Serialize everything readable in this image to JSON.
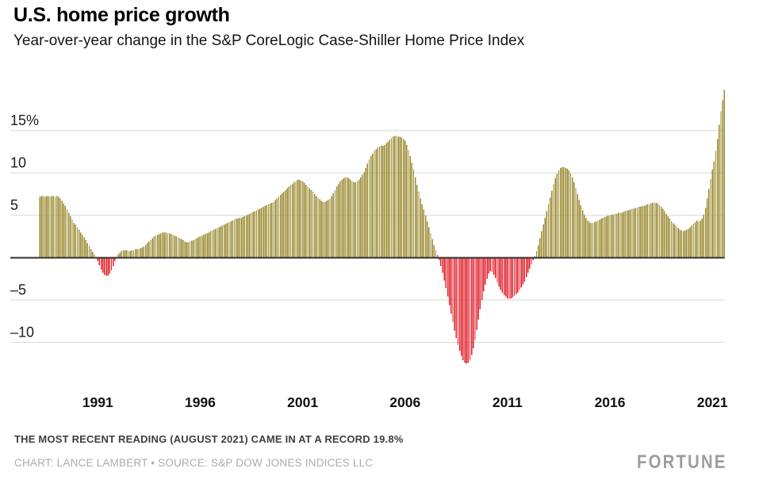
{
  "header": {
    "title": "U.S. home price growth",
    "subtitle": "Year-over-year change in the S&P CoreLogic Case-Shiller Home Price Index"
  },
  "chart_data": {
    "type": "bar",
    "title": "U.S. home price growth",
    "subtitle": "Year-over-year change in the S&P CoreLogic Case-Shiller Home Price Index",
    "unit": "percent, year-over-year change",
    "frequency": "monthly",
    "start_month": "1988-03",
    "end_month": "2021-08",
    "xlabel": "",
    "ylabel": "",
    "x_tick_labels": [
      "1991",
      "1996",
      "2001",
      "2006",
      "2011",
      "2016",
      "2021"
    ],
    "x_tick_years": [
      1991,
      1996,
      2001,
      2006,
      2011,
      2016,
      2021
    ],
    "y_tick_labels": [
      "15%",
      "10",
      "5",
      "–5",
      "–10"
    ],
    "y_tick_values": [
      15,
      10,
      5,
      -5,
      -10
    ],
    "ylim": [
      -13.8,
      20.3
    ],
    "grid": true,
    "legend": false,
    "zero_baseline": true,
    "positive_color": "#9B8B32",
    "negative_color": "#E01F2A",
    "grid_color": "#D8D8D8",
    "zero_line_color": "#33302B",
    "values": [
      7.2,
      7.3,
      7.3,
      7.2,
      7.3,
      7.3,
      7.2,
      7.3,
      7.3,
      7.2,
      7.3,
      7.2,
      7.0,
      6.7,
      6.4,
      6.1,
      5.7,
      5.3,
      4.9,
      4.5,
      4.1,
      3.9,
      3.6,
      3.3,
      3.0,
      2.7,
      2.4,
      2.1,
      1.7,
      1.4,
      1.0,
      0.7,
      0.4,
      0.1,
      -0.4,
      -0.9,
      -1.4,
      -1.8,
      -2.0,
      -2.1,
      -2.1,
      -1.9,
      -1.5,
      -1.0,
      -0.4,
      0.1,
      0.4,
      0.6,
      0.8,
      0.9,
      0.9,
      0.9,
      0.8,
      0.8,
      0.9,
      0.9,
      1.0,
      1.0,
      1.0,
      1.1,
      1.2,
      1.3,
      1.5,
      1.7,
      1.9,
      2.1,
      2.3,
      2.5,
      2.6,
      2.7,
      2.8,
      2.9,
      3.0,
      3.0,
      3.0,
      2.9,
      2.9,
      2.8,
      2.7,
      2.6,
      2.5,
      2.4,
      2.3,
      2.2,
      2.1,
      1.9,
      1.8,
      1.8,
      1.9,
      2.0,
      2.1,
      2.2,
      2.3,
      2.4,
      2.5,
      2.6,
      2.7,
      2.8,
      2.9,
      3.0,
      3.1,
      3.2,
      3.3,
      3.4,
      3.5,
      3.6,
      3.7,
      3.8,
      3.9,
      4.0,
      4.1,
      4.2,
      4.3,
      4.4,
      4.5,
      4.6,
      4.6,
      4.7,
      4.7,
      4.8,
      4.9,
      5.0,
      5.1,
      5.2,
      5.3,
      5.4,
      5.5,
      5.6,
      5.7,
      5.8,
      5.9,
      6.0,
      6.1,
      6.2,
      6.3,
      6.4,
      6.5,
      6.6,
      6.8,
      7.0,
      7.2,
      7.4,
      7.6,
      7.8,
      8.0,
      8.2,
      8.4,
      8.6,
      8.7,
      8.9,
      9.0,
      9.2,
      9.2,
      9.1,
      9.0,
      8.8,
      8.6,
      8.4,
      8.2,
      8.0,
      7.8,
      7.5,
      7.3,
      7.1,
      6.9,
      6.7,
      6.6,
      6.6,
      6.7,
      6.8,
      7.0,
      7.3,
      7.6,
      8.0,
      8.4,
      8.7,
      9.0,
      9.2,
      9.4,
      9.5,
      9.5,
      9.4,
      9.2,
      9.0,
      8.9,
      8.9,
      9.0,
      9.2,
      9.5,
      9.8,
      10.1,
      10.6,
      11.1,
      11.6,
      12.0,
      12.3,
      12.6,
      12.8,
      13.0,
      13.1,
      13.2,
      13.2,
      13.3,
      13.5,
      13.7,
      13.9,
      14.1,
      14.3,
      14.4,
      14.4,
      14.3,
      14.3,
      14.2,
      14.0,
      13.8,
      13.3,
      12.7,
      12.0,
      11.2,
      10.4,
      9.5,
      8.6,
      7.8,
      7.0,
      6.3,
      5.7,
      5.0,
      4.3,
      3.6,
      2.9,
      2.2,
      1.5,
      0.9,
      0.3,
      -0.3,
      -1.0,
      -1.8,
      -2.7,
      -3.6,
      -4.6,
      -5.6,
      -6.6,
      -7.6,
      -8.6,
      -9.5,
      -10.3,
      -11.0,
      -11.6,
      -12.1,
      -12.4,
      -12.5,
      -12.4,
      -12.1,
      -11.5,
      -10.7,
      -9.7,
      -8.5,
      -7.3,
      -6.1,
      -5.0,
      -4.0,
      -3.2,
      -2.5,
      -1.9,
      -1.6,
      -1.7,
      -2.0,
      -2.4,
      -2.9,
      -3.4,
      -3.8,
      -4.1,
      -4.4,
      -4.6,
      -4.8,
      -4.8,
      -4.8,
      -4.7,
      -4.5,
      -4.3,
      -4.1,
      -3.8,
      -3.5,
      -3.2,
      -2.8,
      -2.3,
      -1.8,
      -1.3,
      -0.8,
      -0.3,
      0.2,
      0.8,
      1.5,
      2.3,
      3.1,
      3.9,
      4.7,
      5.5,
      6.3,
      7.1,
      7.9,
      8.7,
      9.4,
      9.9,
      10.3,
      10.6,
      10.7,
      10.7,
      10.6,
      10.5,
      10.3,
      10.0,
      9.5,
      8.9,
      8.2,
      7.5,
      6.8,
      6.2,
      5.6,
      5.1,
      4.7,
      4.4,
      4.2,
      4.1,
      4.1,
      4.2,
      4.3,
      4.4,
      4.5,
      4.6,
      4.7,
      4.8,
      4.9,
      5.0,
      5.0,
      5.1,
      5.1,
      5.2,
      5.2,
      5.3,
      5.3,
      5.3,
      5.4,
      5.5,
      5.6,
      5.6,
      5.7,
      5.8,
      5.8,
      5.9,
      5.9,
      6.0,
      6.0,
      6.1,
      6.1,
      6.2,
      6.3,
      6.3,
      6.4,
      6.5,
      6.5,
      6.5,
      6.4,
      6.2,
      6.0,
      5.8,
      5.5,
      5.2,
      4.9,
      4.6,
      4.3,
      4.1,
      3.9,
      3.7,
      3.5,
      3.3,
      3.2,
      3.1,
      3.2,
      3.3,
      3.4,
      3.6,
      3.8,
      4.0,
      4.2,
      4.4,
      4.3,
      4.4,
      4.6,
      5.1,
      5.9,
      7.0,
      8.1,
      9.3,
      10.4,
      11.4,
      12.6,
      14.0,
      15.7,
      17.3,
      18.6,
      19.8
    ]
  },
  "footer": {
    "note": "THE MOST RECENT READING (AUGUST 2021) CAME IN AT A RECORD 19.8%",
    "credit": "CHART: LANCE LAMBERT • SOURCE: S&P DOW JONES INDICES LLC",
    "logo": "FORTUNE"
  }
}
